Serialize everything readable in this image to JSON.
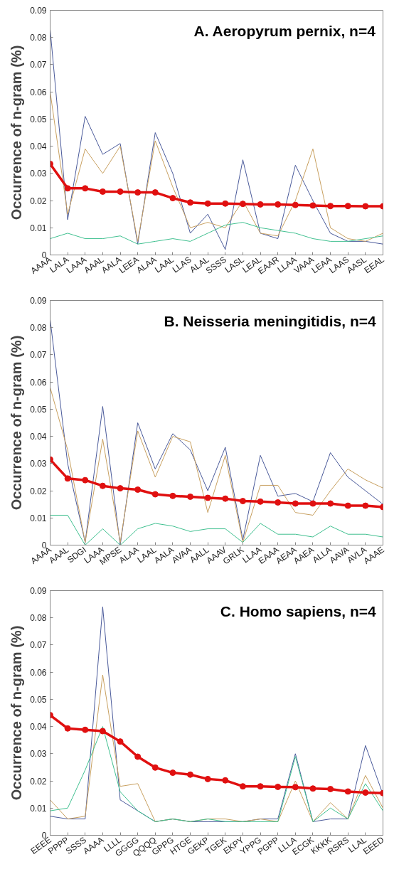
{
  "chart_data": [
    {
      "type": "line",
      "title": "A. Aeropyrum pernix, n=4",
      "ylabel": "Occurrence of n-gram (%)",
      "categories": [
        "AAAA",
        "LALA",
        "LAAA",
        "AAAL",
        "AALA",
        "LEEA",
        "ALAA",
        "LAAL",
        "LLAS",
        "ALAL",
        "SSSS",
        "LASL",
        "LEAL",
        "EAAR",
        "LLAA",
        "VAAA",
        "LEAA",
        "LAAS",
        "AASL",
        "EEAL"
      ],
      "ylim": [
        0,
        0.09
      ],
      "yticks": [
        0,
        0.01,
        0.02,
        0.03,
        0.04,
        0.05,
        0.06,
        0.07,
        0.08,
        0.09
      ],
      "grid": false,
      "marker": "none",
      "line_style": "solid",
      "series": [
        {
          "color": "#4a5a9a",
          "values": [
            0.083,
            0.013,
            0.051,
            0.037,
            0.041,
            0.004,
            0.045,
            0.03,
            0.008,
            0.015,
            0.002,
            0.035,
            0.008,
            0.006,
            0.033,
            0.02,
            0.008,
            0.005,
            0.005,
            0.004
          ]
        },
        {
          "color": "#c8a060",
          "values": [
            0.06,
            0.015,
            0.039,
            0.03,
            0.04,
            0.005,
            0.042,
            0.025,
            0.01,
            0.012,
            0.01,
            0.02,
            0.008,
            0.007,
            0.02,
            0.039,
            0.01,
            0.006,
            0.005,
            0.008
          ]
        },
        {
          "color": "#40c090",
          "values": [
            0.006,
            0.008,
            0.006,
            0.006,
            0.007,
            0.004,
            0.005,
            0.006,
            0.005,
            0.008,
            0.011,
            0.012,
            0.01,
            0.009,
            0.008,
            0.006,
            0.005,
            0.005,
            0.006,
            0.007
          ]
        },
        {
          "color": "#e01010",
          "marker": "circle",
          "values": [
            0.0335,
            0.0245,
            0.0245,
            0.0233,
            0.0233,
            0.023,
            0.023,
            0.0209,
            0.0193,
            0.0189,
            0.0189,
            0.0188,
            0.0186,
            0.0186,
            0.0184,
            0.0182,
            0.018,
            0.018,
            0.0179,
            0.0179
          ]
        }
      ]
    },
    {
      "type": "line",
      "title": "B. Neisseria meningitidis, n=4",
      "ylabel": "Occurrence of n-gram (%)",
      "categories": [
        "AAAA",
        "AAAL",
        "SDGI",
        "LAAA",
        "MPSE",
        "ALAA",
        "LAAL",
        "AALA",
        "AVAA",
        "AALL",
        "AAAV",
        "GRLK",
        "LLAA",
        "EAAA",
        "AEAA",
        "AAEA",
        "ALLA",
        "AAVA",
        "AVLA",
        "AAAE"
      ],
      "ylim": [
        0,
        0.09
      ],
      "yticks": [
        0,
        0.01,
        0.02,
        0.03,
        0.04,
        0.05,
        0.06,
        0.07,
        0.08,
        0.09
      ],
      "grid": false,
      "marker": "none",
      "line_style": "solid",
      "series": [
        {
          "color": "#4a5a9a",
          "values": [
            0.083,
            0.03,
            0.001,
            0.051,
            0,
            0.045,
            0.028,
            0.041,
            0.035,
            0.02,
            0.036,
            0.002,
            0.033,
            0.018,
            0.019,
            0.016,
            0.034,
            0.025,
            0.02,
            0.015
          ]
        },
        {
          "color": "#c8a060",
          "values": [
            0.058,
            0.035,
            0.001,
            0.039,
            0.001,
            0.042,
            0.025,
            0.04,
            0.038,
            0.012,
            0.033,
            0.001,
            0.022,
            0.022,
            0.012,
            0.011,
            0.02,
            0.028,
            0.024,
            0.021
          ]
        },
        {
          "color": "#40c090",
          "values": [
            0.011,
            0.011,
            0,
            0.006,
            0,
            0.006,
            0.008,
            0.007,
            0.005,
            0.006,
            0.006,
            0.001,
            0.008,
            0.004,
            0.004,
            0.003,
            0.007,
            0.004,
            0.004,
            0.003
          ]
        },
        {
          "color": "#e01010",
          "marker": "circle",
          "values": [
            0.0315,
            0.0245,
            0.0239,
            0.0218,
            0.0209,
            0.0204,
            0.0187,
            0.0181,
            0.0178,
            0.0174,
            0.0171,
            0.0162,
            0.016,
            0.0157,
            0.0153,
            0.0153,
            0.0153,
            0.0145,
            0.0145,
            0.014
          ]
        }
      ]
    },
    {
      "type": "line",
      "title": "C. Homo sapiens, n=4",
      "ylabel": "Occurrence of n-gram (%)",
      "categories": [
        "EEEE",
        "PPPP",
        "SSSS",
        "AAAA",
        "LLLL",
        "GGGG",
        "QQQQ",
        "GPPG",
        "HTGE",
        "GEKP",
        "TGEK",
        "EKPY",
        "YPPG",
        "PGPP",
        "LLLA",
        "ECGK",
        "KKKK",
        "RSRS",
        "LLAL",
        "EEED"
      ],
      "ylim": [
        0,
        0.09
      ],
      "yticks": [
        0,
        0.01,
        0.02,
        0.03,
        0.04,
        0.05,
        0.06,
        0.07,
        0.08,
        0.09
      ],
      "grid": false,
      "marker": "none",
      "line_style": "solid",
      "series": [
        {
          "color": "#4a5a9a",
          "values": [
            0.007,
            0.006,
            0.006,
            0.084,
            0.013,
            0.009,
            0.005,
            0.006,
            0.005,
            0.005,
            0.005,
            0.005,
            0.006,
            0.006,
            0.03,
            0.005,
            0.006,
            0.006,
            0.033,
            0.015
          ]
        },
        {
          "color": "#c8a060",
          "values": [
            0.013,
            0.006,
            0.007,
            0.059,
            0.018,
            0.019,
            0.005,
            0.006,
            0.005,
            0.006,
            0.006,
            0.005,
            0.006,
            0.005,
            0.02,
            0.005,
            0.012,
            0.006,
            0.022,
            0.01
          ]
        },
        {
          "color": "#40c090",
          "values": [
            0.009,
            0.01,
            0.024,
            0.04,
            0.016,
            0.009,
            0.005,
            0.006,
            0.005,
            0.006,
            0.005,
            0.005,
            0.005,
            0.005,
            0.029,
            0.005,
            0.01,
            0.006,
            0.019,
            0.009
          ]
        },
        {
          "color": "#e01010",
          "marker": "circle",
          "values": [
            0.0442,
            0.0393,
            0.0388,
            0.0383,
            0.0345,
            0.0289,
            0.0249,
            0.023,
            0.0223,
            0.0207,
            0.0202,
            0.018,
            0.018,
            0.0178,
            0.0177,
            0.0172,
            0.017,
            0.0161,
            0.0157,
            0.0155
          ]
        }
      ]
    }
  ]
}
